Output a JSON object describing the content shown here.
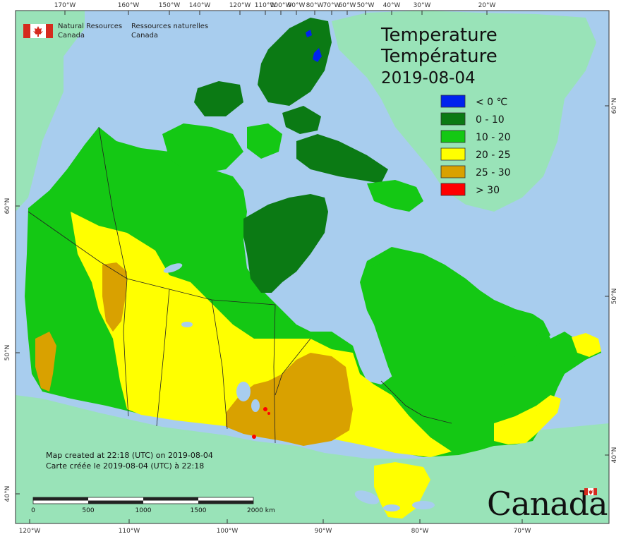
{
  "agency": {
    "en_line1": "Natural Resources",
    "en_line2": "Canada",
    "fr_line1": "Ressources naturelles",
    "fr_line2": "Canada"
  },
  "title": {
    "line1": "Temperature",
    "line2": "Température",
    "date": "2019-08-04"
  },
  "legend": [
    {
      "label": "< 0 ℃",
      "color": "#0022ee"
    },
    {
      "label": "0 - 10",
      "color": "#0b7a14"
    },
    {
      "label": "10 - 20",
      "color": "#14c814"
    },
    {
      "label": "20 - 25",
      "color": "#ffff00"
    },
    {
      "label": "25 - 30",
      "color": "#d9a100"
    },
    {
      "label": "> 30",
      "color": "#ff0000"
    }
  ],
  "colors": {
    "ocean": "#a8cdee",
    "foreign_land": "#99e3b8",
    "frame": "#333333"
  },
  "graticule": {
    "top": [
      "170°W",
      "160°W",
      "150°W",
      "140°W",
      "120°W",
      "110°W",
      "100°W",
      "90°W",
      "80°W",
      "70°W",
      "60°W",
      "50°W",
      "40°W",
      "30°W",
      "20°W"
    ],
    "bottom": [
      "120°W",
      "110°W",
      "100°W",
      "90°W",
      "80°W",
      "70°W"
    ],
    "left": [
      "60°N",
      "50°N",
      "40°N"
    ],
    "right": [
      "60°N",
      "50°N",
      "40°N"
    ]
  },
  "note": {
    "line1": "Map created at 22:18 (UTC) on 2019-08-04",
    "line2": "Carte créée le 2019-08-04 (UTC) à 22:18"
  },
  "scale": {
    "labels": [
      "0",
      "500",
      "1000",
      "1500",
      "2000  km"
    ]
  },
  "wordmark": "Canada"
}
